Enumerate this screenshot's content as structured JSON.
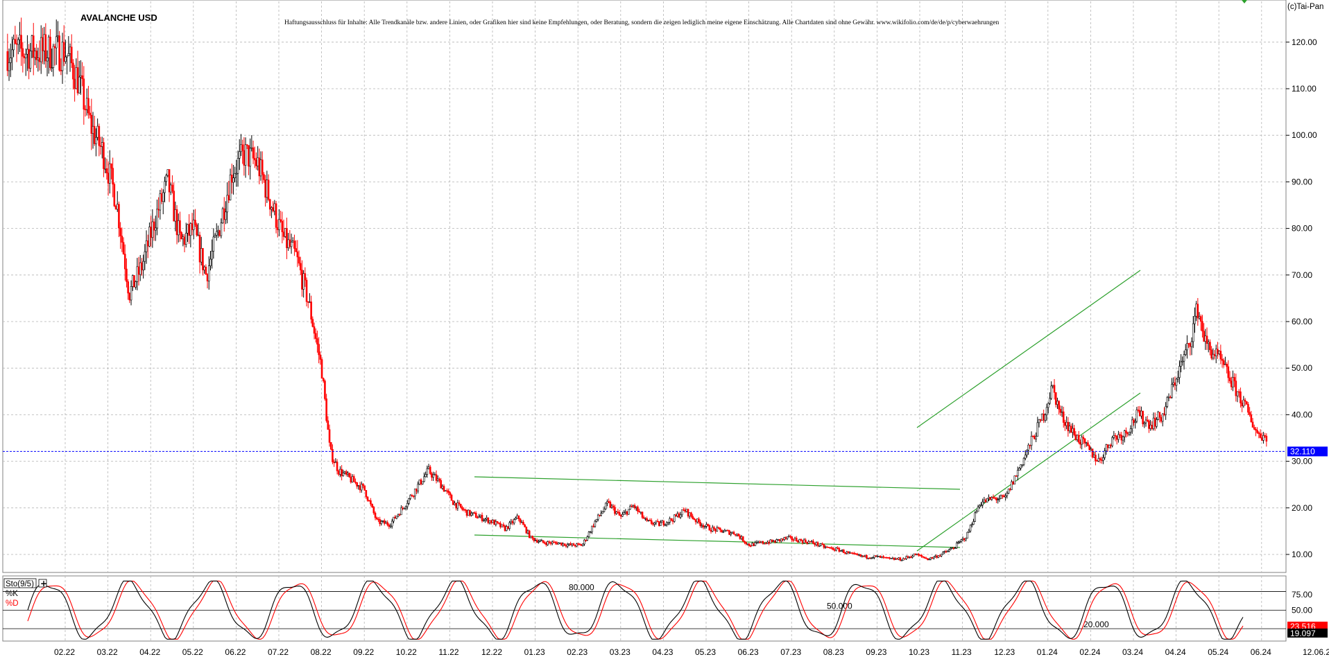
{
  "header": {
    "title": "AVALANCHE USD",
    "disclaimer": "Haftungsausschluss für Inhalte: Alle Trendkanäle bzw. andere Linien, oder Grafiken hier sind keine Empfehlungen, oder Beratung, sondern die zeigen lediglich meine eigene Einschätzung. Alle Chartdaten sind ohne Gewähr. www.wikifolio.com/de/de/p/cyberwaehrungen",
    "copyright": "(c)Tai-Pan"
  },
  "colors": {
    "up": "#000000",
    "down": "#ff0000",
    "trendline": "#2ca02c",
    "price_line": "#0000ff",
    "grid": "#b4b4b4",
    "k_line": "#000000",
    "d_line": "#ff0000"
  },
  "chart_data": [
    {
      "type": "candlestick",
      "title": "AVALANCHE USD",
      "yaxis_ticks": [
        "120.00",
        "110.00",
        "100.00",
        "90.00",
        "80.00",
        "70.00",
        "60.00",
        "50.00",
        "40.00",
        "30.00",
        "20.00",
        "10.00"
      ],
      "ylim": [
        0,
        125
      ],
      "xaxis_ticks": [
        "02.22",
        "03.22",
        "04.22",
        "05.22",
        "06.22",
        "07.22",
        "08.22",
        "09.22",
        "10.22",
        "11.22",
        "12.22",
        "01.23",
        "02.23",
        "03.23",
        "04.23",
        "05.23",
        "06.23",
        "07.23",
        "08.23",
        "09.23",
        "10.23",
        "11.23",
        "12.23",
        "01.24",
        "02.24",
        "03.24",
        "04.24",
        "05.24",
        "06.24"
      ],
      "last_date": "12.06.24",
      "current_price": 32.11,
      "current_price_label": "32.110",
      "grid": true,
      "closes": [
        [
          0,
          118
        ],
        [
          0.3,
          112
        ],
        [
          0.6,
          102
        ],
        [
          0.9,
          96
        ],
        [
          1.2,
          86
        ],
        [
          1.5,
          66
        ],
        [
          1.8,
          72
        ],
        [
          2.1,
          82
        ],
        [
          2.4,
          90
        ],
        [
          2.7,
          77
        ],
        [
          3.0,
          80
        ],
        [
          3.3,
          70
        ],
        [
          3.6,
          80
        ],
        [
          3.9,
          92
        ],
        [
          4.2,
          96
        ],
        [
          4.5,
          94
        ],
        [
          4.8,
          86
        ],
        [
          5.1,
          78
        ],
        [
          5.4,
          74
        ],
        [
          5.7,
          64
        ],
        [
          6.0,
          50
        ],
        [
          6.2,
          32
        ],
        [
          6.4,
          28
        ],
        [
          6.7,
          26
        ],
        [
          7.0,
          24
        ],
        [
          7.3,
          17
        ],
        [
          7.6,
          16.5
        ],
        [
          7.9,
          20
        ],
        [
          8.2,
          24
        ],
        [
          8.5,
          28
        ],
        [
          8.8,
          25
        ],
        [
          9.1,
          21
        ],
        [
          9.4,
          19
        ],
        [
          9.7,
          18
        ],
        [
          10.0,
          17
        ],
        [
          10.3,
          15.5
        ],
        [
          10.6,
          18
        ],
        [
          10.9,
          13.5
        ],
        [
          11.2,
          12.5
        ],
        [
          11.5,
          12.5
        ],
        [
          11.8,
          12
        ],
        [
          12.1,
          12
        ],
        [
          12.4,
          17
        ],
        [
          12.7,
          21
        ],
        [
          13.0,
          18
        ],
        [
          13.3,
          20.5
        ],
        [
          13.6,
          17
        ],
        [
          13.9,
          16.5
        ],
        [
          14.2,
          17.5
        ],
        [
          14.5,
          19.5
        ],
        [
          14.8,
          17
        ],
        [
          15.1,
          15.5
        ],
        [
          15.4,
          15
        ],
        [
          15.7,
          14.5
        ],
        [
          16.0,
          12
        ],
        [
          16.3,
          12.5
        ],
        [
          16.6,
          12.8
        ],
        [
          16.9,
          13.5
        ],
        [
          17.2,
          13
        ],
        [
          17.5,
          12.5
        ],
        [
          17.8,
          11.5
        ],
        [
          18.1,
          11
        ],
        [
          18.4,
          10
        ],
        [
          18.7,
          9.5
        ],
        [
          19.0,
          9.5
        ],
        [
          19.3,
          9
        ],
        [
          19.6,
          9
        ],
        [
          19.9,
          10
        ],
        [
          20.2,
          9
        ],
        [
          20.5,
          10
        ],
        [
          20.8,
          11.5
        ],
        [
          21.1,
          14
        ],
        [
          21.4,
          21
        ],
        [
          21.7,
          22
        ],
        [
          22.0,
          22
        ],
        [
          22.3,
          28
        ],
        [
          22.6,
          34
        ],
        [
          22.9,
          40
        ],
        [
          23.1,
          46
        ],
        [
          23.3,
          40
        ],
        [
          23.6,
          36
        ],
        [
          23.9,
          33
        ],
        [
          24.2,
          30
        ],
        [
          24.5,
          35
        ],
        [
          24.8,
          36
        ],
        [
          25.1,
          40
        ],
        [
          25.4,
          38
        ],
        [
          25.7,
          40
        ],
        [
          26.0,
          48
        ],
        [
          26.3,
          55
        ],
        [
          26.5,
          63
        ],
        [
          26.7,
          55
        ],
        [
          27.0,
          52
        ],
        [
          27.3,
          47
        ],
        [
          27.6,
          42
        ],
        [
          27.9,
          36
        ],
        [
          28.2,
          35
        ],
        [
          28.5,
          37
        ],
        [
          28.8,
          33
        ],
        [
          29.1,
          39
        ],
        [
          29.4,
          35
        ],
        [
          29.7,
          36
        ],
        [
          30.0,
          32.1
        ]
      ],
      "stochastic": {
        "label": "Sto(9/5)",
        "k_name": "%K",
        "d_name": "%D",
        "levels": [
          {
            "value": 80,
            "label": "80.000"
          },
          {
            "value": 50,
            "label": "50.000"
          },
          {
            "value": 20,
            "label": "20.000"
          }
        ],
        "axis_ticks": [
          "75.00",
          "50.00"
        ],
        "k_value": 19.097,
        "k_label": "19.097",
        "d_value": 23.516,
        "d_label": "23.516"
      }
    }
  ]
}
